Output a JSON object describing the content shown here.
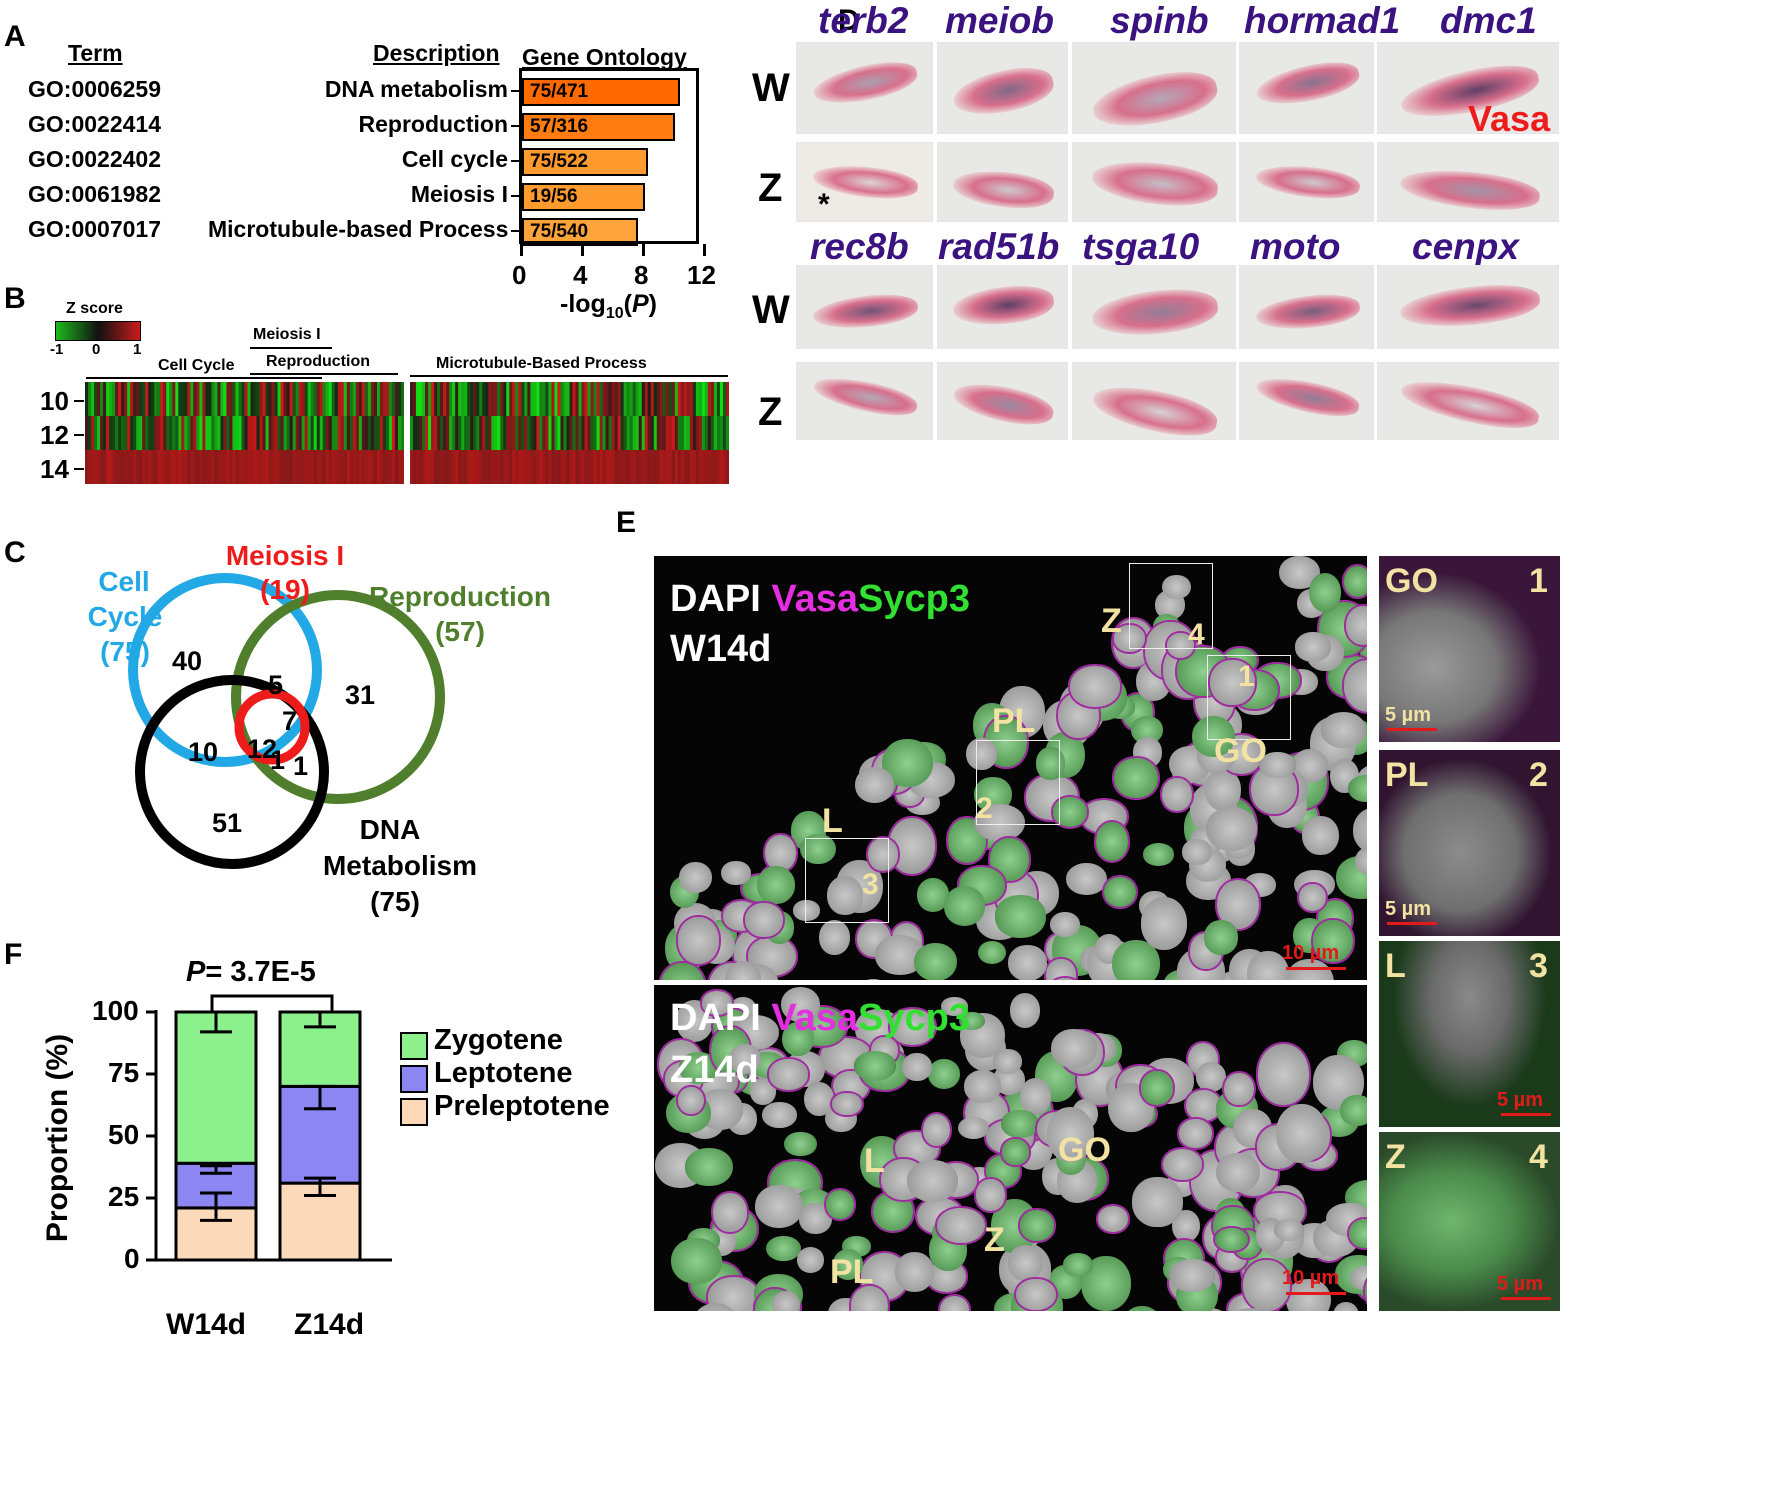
{
  "panels": {
    "A": "A",
    "B": "B",
    "C": "C",
    "D": "D",
    "E": "E",
    "F": "F"
  },
  "panelA": {
    "header_term": "Term",
    "header_desc": "Description",
    "header_go": "Gene Ontology",
    "xlabel": "-log10(P)",
    "xlabel_main": "-log",
    "xlabel_sub": "10",
    "xlabel_p": "P",
    "ticks": [
      "0",
      "4",
      "8",
      "12"
    ],
    "rows": [
      {
        "term": "GO:0006259",
        "desc": "DNA metabolism",
        "label": "75/471",
        "value": 10.5,
        "color": "#ff6a00"
      },
      {
        "term": "GO:0022414",
        "desc": "Reproduction",
        "label": "57/316",
        "value": 10.2,
        "color": "#ff7d10"
      },
      {
        "term": "GO:0022402",
        "desc": "Cell cycle",
        "label": "75/522",
        "value": 8.4,
        "color": "#ff9a2e"
      },
      {
        "term": "GO:0061982",
        "desc": "Meiosis I",
        "label": "19/56",
        "value": 8.2,
        "color": "#ff9a2e"
      },
      {
        "term": "GO:0007017",
        "desc": "Microtubule-based Process",
        "label": "75/540",
        "value": 7.7,
        "color": "#ffa33b"
      }
    ]
  },
  "panelB": {
    "zscore": "Z score",
    "zticks": [
      "-1",
      "0",
      "1"
    ],
    "groups": {
      "meiosis": "Meiosis I",
      "reproduction": "Reproduction",
      "cellcycle": "Cell Cycle",
      "microtubule": "Microtubule-Based Process"
    },
    "rows": [
      "10",
      "12",
      "14"
    ]
  },
  "panelC": {
    "cell_cycle": "Cell\nCycle\n(75)",
    "cell_cycle_l1": "Cell",
    "cell_cycle_l2": "Cycle",
    "cell_cycle_l3": "(75)",
    "meiosis_l1": "Meiosis I",
    "meiosis_l2": "(19)",
    "repro_l1": "Reproduction",
    "repro_l2": "(57)",
    "dna_l1": "DNA",
    "dna_l2": "Metabolism",
    "dna_l3": "(75)",
    "nums": {
      "n40": "40",
      "n5": "5",
      "n7": "7",
      "n31": "31",
      "n12": "12",
      "n10": "10",
      "n1a": "1",
      "n1b": "1",
      "n51": "51"
    }
  },
  "panelD": {
    "genes_top": [
      "terb2",
      "meiob",
      "spinb",
      "hormad1",
      "dmc1"
    ],
    "genes_bottom": [
      "rec8b",
      "rad51b",
      "tsga10",
      "moto",
      "cenpx"
    ],
    "rowW": "W",
    "rowZ": "Z",
    "vasa": "Vasa",
    "asterisk": "*"
  },
  "panelE": {
    "dapi": "DAPI",
    "vasa": "Vasa",
    "sycp3": "Sycp3",
    "top_sample": "W14d",
    "bottom_sample": "Z14d",
    "scale10": "10 µm",
    "scale5": "5 µm",
    "top_labels": {
      "Z": "Z",
      "PL": "PL",
      "GO": "GO",
      "L": "L",
      "n1": "1",
      "n2": "2",
      "n3": "3",
      "n4": "4"
    },
    "bottom_labels": {
      "L": "L",
      "GO": "GO",
      "Z": "Z",
      "PL": "PL"
    },
    "insets": [
      {
        "stage": "GO",
        "num": "1"
      },
      {
        "stage": "PL",
        "num": "2"
      },
      {
        "stage": "L",
        "num": "3"
      },
      {
        "stage": "Z",
        "num": "4"
      }
    ]
  },
  "panelF": {
    "pvalue_p": "P",
    "pvalue": "= 3.7E-5",
    "ylabel": "Proportion (%)",
    "yticks": [
      "0",
      "25",
      "50",
      "75",
      "100"
    ],
    "categories": [
      "W14d",
      "Z14d"
    ],
    "legend": [
      "Zygotene",
      "Leptotene",
      "Preleptotene"
    ]
  },
  "chart_data": [
    {
      "type": "bar",
      "orientation": "horizontal",
      "categories": [
        "DNA metabolism",
        "Reproduction",
        "Cell cycle",
        "Meiosis I",
        "Microtubule-based Process"
      ],
      "values": [
        10.5,
        10.2,
        8.4,
        8.2,
        7.7
      ],
      "data_labels": [
        "75/471",
        "57/316",
        "75/522",
        "19/56",
        "75/540"
      ],
      "title": "Gene Ontology",
      "xlabel": "-log10(P)",
      "xlim": [
        0,
        12
      ]
    },
    {
      "type": "bar",
      "stacked": true,
      "categories": [
        "W14d",
        "Z14d"
      ],
      "series": [
        {
          "name": "Preleptotene",
          "values": [
            21,
            31
          ],
          "color": "#fcd9b8"
        },
        {
          "name": "Leptotene",
          "values": [
            18,
            39
          ],
          "color": "#8b86f2"
        },
        {
          "name": "Zygotene",
          "values": [
            61,
            30
          ],
          "color": "#8cf08c"
        }
      ],
      "ylabel": "Proportion (%)",
      "ylim": [
        0,
        100
      ],
      "annotation": "P= 3.7E-5",
      "legend": "right"
    }
  ]
}
